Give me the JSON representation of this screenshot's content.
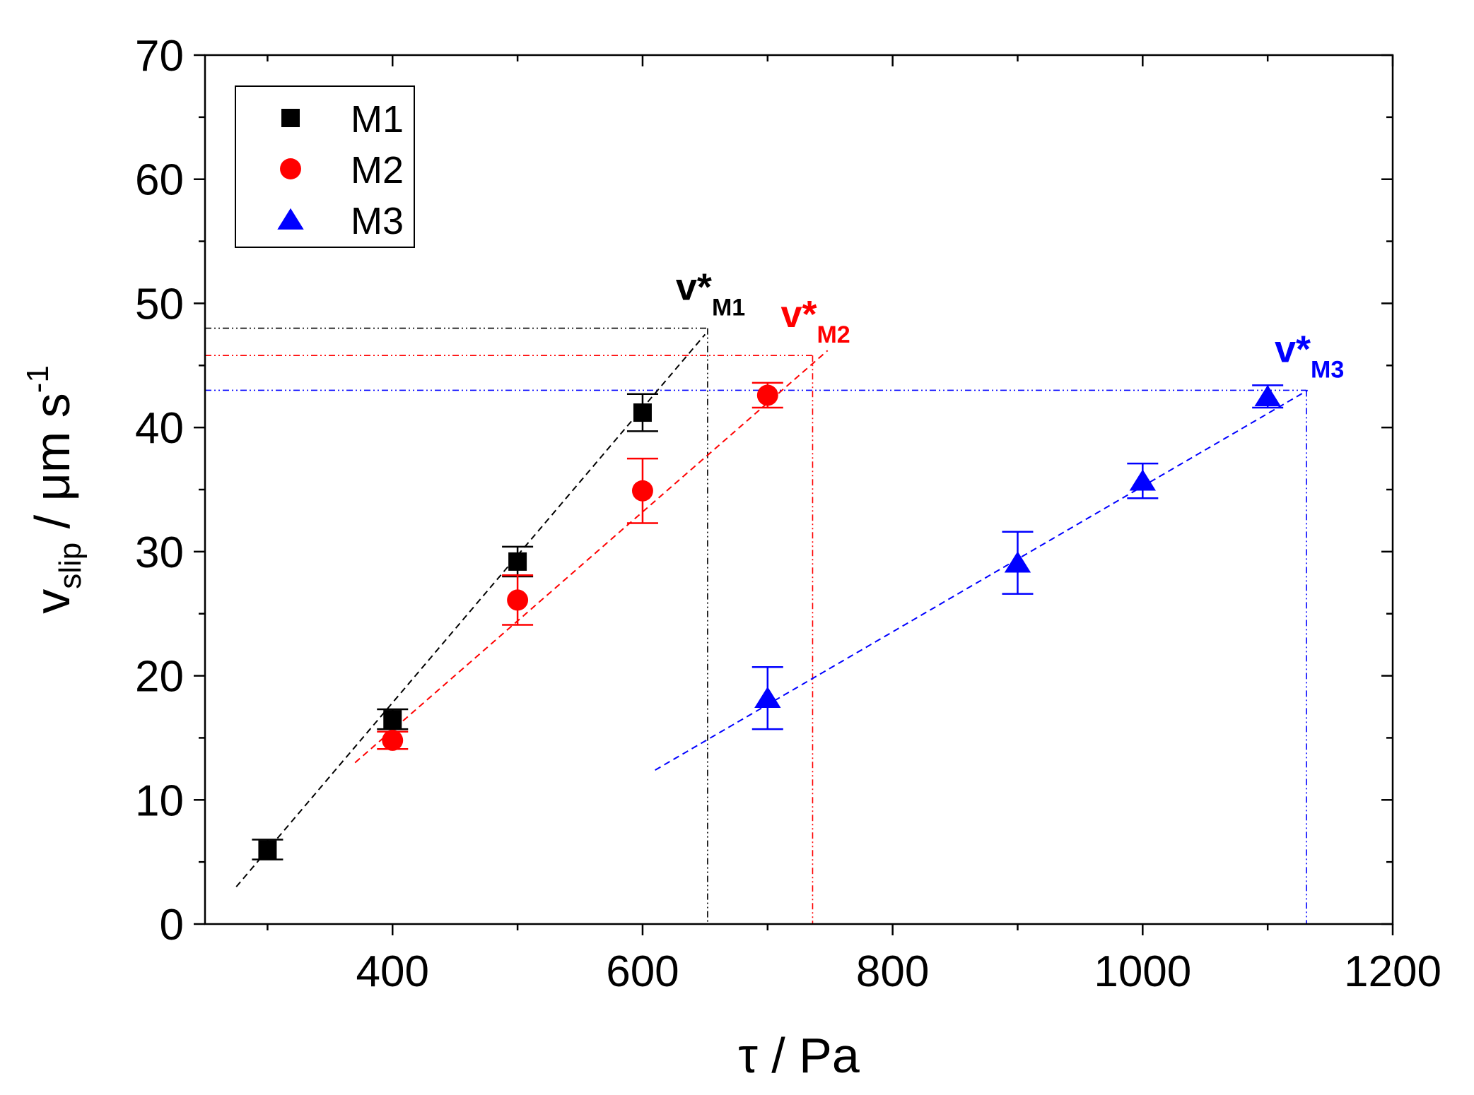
{
  "chart_data": {
    "type": "scatter",
    "title": "",
    "xlabel": "τ / Pa",
    "ylabel": {
      "main": "v",
      "sub": "slip",
      "unit": " / μm s",
      "sup": "-1"
    },
    "xlim": [
      250,
      1200
    ],
    "ylim": [
      0,
      70
    ],
    "xticks": [
      400,
      600,
      800,
      1000,
      1200
    ],
    "xminor": [
      300,
      500,
      700,
      900,
      1100
    ],
    "yticks": [
      0,
      10,
      20,
      30,
      40,
      50,
      60,
      70
    ],
    "yminor": [
      5,
      15,
      25,
      35,
      45,
      55,
      65
    ],
    "legend_position": "top-left",
    "series": [
      {
        "name": "M1",
        "color": "#000000",
        "marker": "square",
        "x": [
          300,
          400,
          500,
          600
        ],
        "y": [
          6.0,
          16.5,
          29.2,
          41.2
        ],
        "err": [
          0.8,
          0.8,
          1.2,
          1.5
        ],
        "fit": {
          "x": [
            275,
            650
          ],
          "y": [
            3.0,
            47.5
          ]
        },
        "critical": {
          "x": 652,
          "y": 48.0,
          "label": "v*",
          "sub": "M1"
        }
      },
      {
        "name": "M2",
        "color": "#ff0000",
        "marker": "circle",
        "x": [
          400,
          500,
          600,
          700
        ],
        "y": [
          14.8,
          26.1,
          34.9,
          42.6
        ],
        "err": [
          0.7,
          2.0,
          2.6,
          1.0
        ],
        "fit": {
          "x": [
            370,
            748
          ],
          "y": [
            13.0,
            46.2
          ]
        },
        "critical": {
          "x": 736,
          "y": 45.8,
          "label": "v*",
          "sub": "M2"
        }
      },
      {
        "name": "M3",
        "color": "#0000ff",
        "marker": "triangle",
        "x": [
          700,
          900,
          1000,
          1100
        ],
        "y": [
          18.2,
          29.1,
          35.7,
          42.5
        ],
        "err": [
          2.5,
          2.5,
          1.4,
          0.9
        ],
        "fit": {
          "x": [
            610,
            1132
          ],
          "y": [
            12.4,
            43.0
          ]
        },
        "critical": {
          "x": 1131,
          "y": 43.0,
          "label": "v*",
          "sub": "M3"
        }
      }
    ]
  }
}
